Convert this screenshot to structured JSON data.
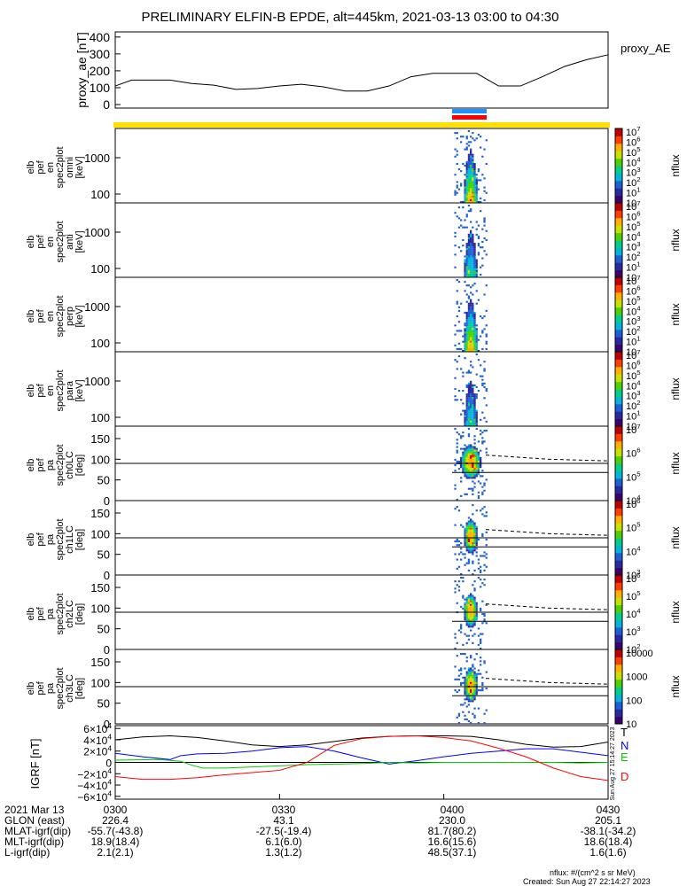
{
  "title": "PRELIMINARY ELFIN-B EPDE, alt=445km, 2021-03-13 03:00 to 04:30",
  "footer": {
    "units": "nflux: #/(cm^2 s sr MeV)",
    "created": "Created: Sun Aug 27 22:14:27 2023"
  },
  "vertical_stamp": "Sun Aug 27 15:14:27 2023",
  "ephemeris": {
    "rows": [
      {
        "label": "2021 Mar 13",
        "values": [
          "0300",
          "0330",
          "0400",
          "0430"
        ]
      },
      {
        "label": "GLON (east)",
        "values": [
          "226.4",
          "43.1",
          "230.0",
          "205.1"
        ]
      },
      {
        "label": "MLAT-igrf(dip)",
        "values": [
          "-55.7(-43.8)",
          "-27.5(-19.4)",
          "81.7(80.2)",
          "-38.1(-34.2)"
        ]
      },
      {
        "label": "MLT-igrf(dip)",
        "values": [
          "18.9(18.4)",
          "6.1(6.0)",
          "16.6(15.6)",
          "18.6(18.4)"
        ]
      },
      {
        "label": "L-igrf(dip)",
        "values": [
          "2.1(2.1)",
          "1.3(1.2)",
          "48.5(37.1)",
          "1.6(1.6)"
        ]
      }
    ]
  },
  "colors": {
    "science_bar_blue": "#1E90FF",
    "science_bar_red": "#FF0000",
    "sunlight_bar": "#FFE000",
    "T": "#000000",
    "N": "#0000FF",
    "E": "#00CC00",
    "D": "#FF0000"
  },
  "chart_data": [
    {
      "type": "line",
      "ylabel": "proxy_ae [nT]",
      "legend": "proxy_AE",
      "yticks": [
        "0",
        "100",
        "200",
        "300",
        "400"
      ],
      "ylim": [
        0,
        420
      ],
      "xlim": [
        0,
        90
      ],
      "x_unit": "minutes after 2021-03-13 03:00",
      "x": [
        0,
        3,
        6,
        10,
        14,
        18,
        22,
        26,
        30,
        34,
        38,
        42,
        46,
        50,
        54,
        58,
        62,
        66,
        70,
        74,
        78,
        82,
        86,
        90
      ],
      "values": [
        110,
        145,
        145,
        145,
        125,
        115,
        90,
        95,
        110,
        120,
        105,
        80,
        80,
        110,
        165,
        185,
        185,
        185,
        110,
        110,
        165,
        225,
        265,
        295
      ]
    },
    {
      "type": "heatmap",
      "panel_label": [
        "elb",
        "pef",
        "en",
        "spec2plot",
        "omni",
        "[keV]"
      ],
      "yticks": [
        "100",
        "1000"
      ],
      "colorbar": {
        "label": "nflux",
        "ticks": [
          "10",
          "10^1",
          "10^2",
          "10^3",
          "10^4",
          "10^5",
          "10^6",
          "10^7"
        ]
      }
    },
    {
      "type": "heatmap",
      "panel_label": [
        "elb",
        "pef",
        "en",
        "spec2plot",
        "anti",
        "[keV]"
      ],
      "yticks": [
        "100",
        "1000"
      ],
      "colorbar": {
        "label": "nflux",
        "ticks": [
          "10",
          "10^1",
          "10^2",
          "10^3",
          "10^4",
          "10^5",
          "10^6",
          "10^7"
        ]
      }
    },
    {
      "type": "heatmap",
      "panel_label": [
        "elb",
        "pef",
        "en",
        "spec2plot",
        "perp",
        "[keV]"
      ],
      "yticks": [
        "100",
        "1000"
      ],
      "colorbar": {
        "label": "nflux",
        "ticks": [
          "10",
          "10^1",
          "10^2",
          "10^3",
          "10^4",
          "10^5",
          "10^6",
          "10^7"
        ]
      }
    },
    {
      "type": "heatmap",
      "panel_label": [
        "elb",
        "pef",
        "en",
        "spec2plot",
        "para",
        "[keV]"
      ],
      "yticks": [
        "100",
        "1000"
      ],
      "colorbar": {
        "label": "nflux",
        "ticks": [
          "10",
          "10^1",
          "10^2",
          "10^3",
          "10^4",
          "10^5",
          "10^6",
          "10^7"
        ]
      }
    },
    {
      "type": "heatmap",
      "panel_label": [
        "elb",
        "pef",
        "pa",
        "spec2plot",
        "ch0LC",
        "[deg]"
      ],
      "yticks": [
        "0",
        "50",
        "100",
        "150"
      ],
      "colorbar": {
        "label": "nflux",
        "ticks": [
          "10^4",
          "10^5",
          "10^6",
          "10^7"
        ]
      }
    },
    {
      "type": "heatmap",
      "panel_label": [
        "elb",
        "pef",
        "pa",
        "spec2plot",
        "ch1LC",
        "[deg]"
      ],
      "yticks": [
        "0",
        "50",
        "100",
        "150"
      ],
      "colorbar": {
        "label": "nflux",
        "ticks": [
          "10^3",
          "10^4",
          "10^5",
          "10^6"
        ]
      }
    },
    {
      "type": "heatmap",
      "panel_label": [
        "elb",
        "pef",
        "pa",
        "spec2plot",
        "ch2LC",
        "[deg]"
      ],
      "yticks": [
        "0",
        "50",
        "100",
        "150"
      ],
      "colorbar": {
        "label": "nflux",
        "ticks": [
          "10^2",
          "10^3",
          "10^4",
          "10^5",
          "10^6"
        ]
      }
    },
    {
      "type": "heatmap",
      "panel_label": [
        "elb",
        "pef",
        "pa",
        "spec2plot",
        "ch3LC",
        "[deg]"
      ],
      "yticks": [
        "0",
        "50",
        "100",
        "150"
      ],
      "colorbar": {
        "label": "nflux",
        "ticks": [
          "10",
          "100",
          "1000",
          "10000"
        ]
      }
    },
    {
      "type": "line",
      "ylabel": "IGRF [nT]",
      "yticks": [
        "6×10^4",
        "4×10^4",
        "2×10^4",
        "0",
        "−2×10^4",
        "−4×10^4",
        "−6×10^4"
      ],
      "ylim": [
        -65000,
        65000
      ],
      "xlim": [
        0,
        90
      ],
      "series": [
        {
          "name": "T",
          "x": [
            0,
            5,
            10,
            15,
            20,
            25,
            30,
            35,
            40,
            45,
            50,
            55,
            60,
            65,
            70,
            75,
            80,
            85,
            90
          ],
          "values": [
            40000,
            45000,
            47000,
            44000,
            38000,
            31000,
            28000,
            31000,
            37000,
            43000,
            46000,
            47000,
            47000,
            46000,
            40000,
            32000,
            27000,
            28000,
            36000
          ]
        },
        {
          "name": "N",
          "x": [
            0,
            5,
            10,
            12,
            15,
            20,
            25,
            30,
            35,
            40,
            45,
            50,
            55,
            60,
            65,
            70,
            75,
            80,
            85,
            90
          ],
          "values": [
            16000,
            10000,
            5000,
            12000,
            15000,
            16000,
            20000,
            26000,
            28000,
            20000,
            8000,
            -3000,
            3000,
            10000,
            16000,
            20000,
            24000,
            24000,
            18000,
            12000
          ]
        },
        {
          "name": "E",
          "x": [
            0,
            4,
            8,
            12,
            14,
            16,
            20,
            25,
            30,
            35,
            40,
            45,
            50,
            55,
            60,
            65,
            70,
            75,
            80,
            85,
            90
          ],
          "values": [
            4000,
            4500,
            5000,
            2000,
            -5000,
            -10000,
            -10000,
            -8000,
            -6000,
            -4000,
            -3000,
            -2000,
            0,
            -1000,
            0,
            0,
            0,
            0,
            0,
            -1000,
            0
          ]
        },
        {
          "name": "D",
          "x": [
            0,
            5,
            10,
            15,
            20,
            25,
            30,
            35,
            40,
            45,
            50,
            55,
            60,
            65,
            70,
            75,
            80,
            85,
            90
          ],
          "values": [
            -25000,
            -30000,
            -30000,
            -27000,
            -22000,
            -18000,
            -14000,
            0,
            30000,
            42000,
            46000,
            47000,
            44000,
            38000,
            25000,
            10000,
            -10000,
            -25000,
            -32000
          ]
        }
      ]
    }
  ]
}
